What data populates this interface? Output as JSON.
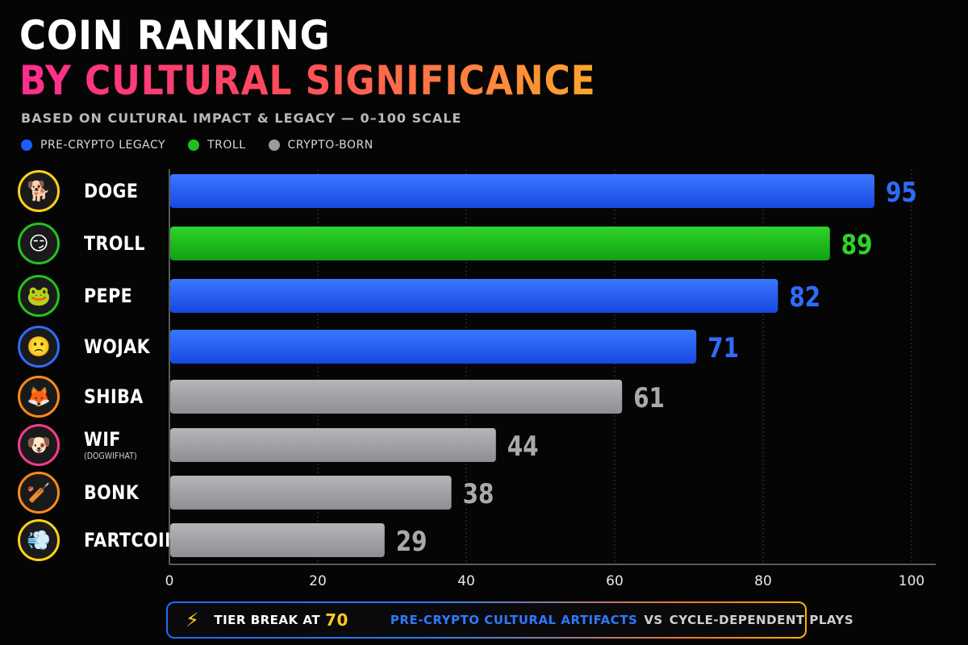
{
  "header": {
    "title_line1": "COIN RANKING",
    "title_line2": "BY CULTURAL SIGNIFICANCE",
    "subtitle": "BASED ON CULTURAL IMPACT & LEGACY — 0–100 SCALE"
  },
  "legend": [
    {
      "label": "PRE-CRYPTO LEGACY",
      "color": "#1f5cff"
    },
    {
      "label": "TROLL",
      "color": "#1fbf1f"
    },
    {
      "label": "CRYPTO-BORN",
      "color": "#9a9aa0"
    }
  ],
  "colors": {
    "pre_crypto": "#1f5cff",
    "troll": "#17b517",
    "crypto_born": "#a2a2a7",
    "grid": "#3a3a3a",
    "axis": "#777777"
  },
  "chart_data": {
    "type": "bar",
    "orientation": "horizontal",
    "categories": [
      "DOGE",
      "TROLL",
      "PEPE",
      "WOJAK",
      "SHIBA",
      "WIF",
      "BONK",
      "FARTCOIN"
    ],
    "category_sublabels": [
      "",
      "",
      "",
      "",
      "",
      "(DOGWIFHAT)",
      "",
      ""
    ],
    "values": [
      95,
      89,
      82,
      71,
      61,
      44,
      38,
      29
    ],
    "value_labels": [
      "95",
      "89",
      "82",
      "71",
      "61",
      "44",
      "38",
      "29"
    ],
    "groups": [
      "pre_crypto",
      "troll",
      "pre_crypto",
      "pre_crypto",
      "crypto_born",
      "crypto_born",
      "crypto_born",
      "crypto_born"
    ],
    "title": "COIN RANKING BY CULTURAL SIGNIFICANCE",
    "xlim": [
      0,
      100
    ],
    "xticks": [
      0,
      20,
      40,
      60,
      80,
      100
    ],
    "xtick_labels": [
      "0",
      "20",
      "40",
      "60",
      "80",
      "100"
    ],
    "grid": true,
    "legend_position": "top-left"
  },
  "avatars": [
    {
      "icon": "doge-icon",
      "glyph": "🐕",
      "ring": "#ffd21a"
    },
    {
      "icon": "troll-face-icon",
      "glyph": "😏",
      "ring": "#24c21f"
    },
    {
      "icon": "pepe-frog-icon",
      "glyph": "🐸",
      "ring": "#24c21f"
    },
    {
      "icon": "wojak-icon",
      "glyph": "🙁",
      "ring": "#2f6bff"
    },
    {
      "icon": "shiba-icon",
      "glyph": "🦊",
      "ring": "#ff8a1a"
    },
    {
      "icon": "dog-with-hat-icon",
      "glyph": "🐶",
      "ring": "#ff3a8f"
    },
    {
      "icon": "bat-icon",
      "glyph": "🏏",
      "ring": "#ff8a1a"
    },
    {
      "icon": "fart-cloud-icon",
      "glyph": "💨",
      "ring": "#ffd21a"
    }
  ],
  "footer": {
    "bolt_icon": "lightning-bolt-icon",
    "tier_text": "TIER BREAK AT",
    "tier_value": "70",
    "pre_crypto_text": "PRE-CRYPTO CULTURAL ARTIFACTS",
    "vs_text": "VS",
    "cycle_text": "CYCLE-DEPENDENT PLAYS"
  }
}
